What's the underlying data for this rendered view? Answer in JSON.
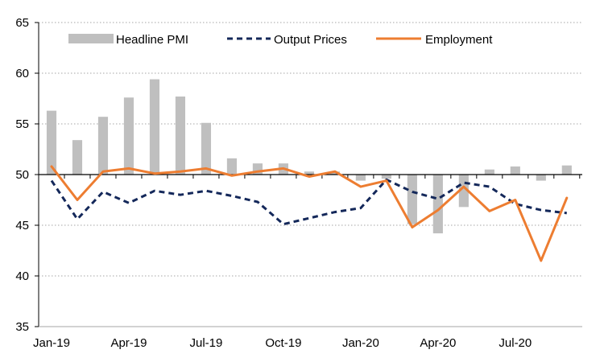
{
  "chart_data": {
    "type": "bar",
    "title": "",
    "xlabel": "",
    "ylabel": "",
    "ylim": [
      35,
      65
    ],
    "yticks": [
      35,
      40,
      45,
      50,
      55,
      60,
      65
    ],
    "bar_baseline": 50,
    "grid": "horizontal dotted",
    "legend_position": "top",
    "categories": [
      "Jan-19",
      "Feb-19",
      "Mar-19",
      "Apr-19",
      "May-19",
      "Jun-19",
      "Jul-19",
      "Aug-19",
      "Sep-19",
      "Oct-19",
      "Nov-19",
      "Dec-19",
      "Jan-20",
      "Feb-20",
      "Mar-20",
      "Apr-20",
      "May-20",
      "Jun-20",
      "Jul-20",
      "Aug-20",
      "Sep-20"
    ],
    "x_tick_labels": [
      {
        "index": 0,
        "label": "Jan-19"
      },
      {
        "index": 3,
        "label": "Apr-19"
      },
      {
        "index": 6,
        "label": "Jul-19"
      },
      {
        "index": 9,
        "label": "Oct-19"
      },
      {
        "index": 12,
        "label": "Jan-20"
      },
      {
        "index": 15,
        "label": "Apr-20"
      },
      {
        "index": 18,
        "label": "Jul-20"
      }
    ],
    "series": [
      {
        "name": "Headline PMI",
        "kind": "bar",
        "color": "#bfbfbf",
        "values": [
          56.3,
          53.4,
          55.7,
          57.6,
          59.4,
          57.7,
          55.1,
          51.6,
          51.1,
          51.1,
          50.3,
          50.3,
          49.4,
          49.6,
          45.1,
          44.2,
          46.8,
          50.5,
          50.8,
          49.4,
          50.9
        ]
      },
      {
        "name": "Output Prices",
        "kind": "line",
        "style": "dashed",
        "color": "#14285a",
        "values": [
          49.4,
          45.6,
          48.3,
          47.2,
          48.4,
          48.0,
          48.4,
          47.9,
          47.3,
          45.1,
          45.7,
          46.3,
          46.7,
          49.5,
          48.3,
          47.6,
          49.2,
          48.8,
          47.1,
          46.5,
          46.2
        ]
      },
      {
        "name": "Employment",
        "kind": "line",
        "style": "solid",
        "color": "#ed7d31",
        "values": [
          50.8,
          47.5,
          50.3,
          50.6,
          50.1,
          50.3,
          50.6,
          49.9,
          50.3,
          50.6,
          49.8,
          50.3,
          48.8,
          49.4,
          44.8,
          46.5,
          48.8,
          46.4,
          47.5,
          41.5,
          47.7
        ]
      }
    ]
  }
}
